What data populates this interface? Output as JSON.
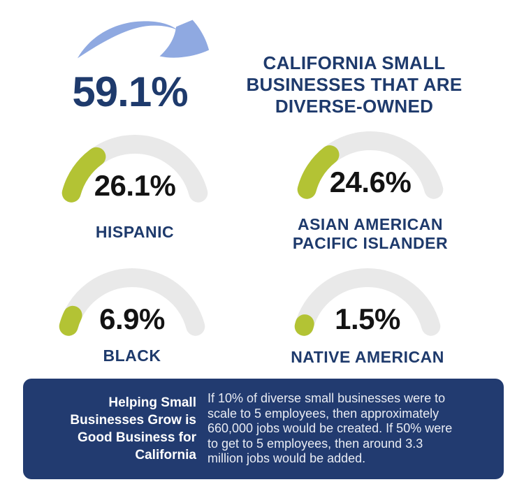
{
  "header": {
    "stat_value": "59.1%",
    "title_lines": [
      "CALIFORNIA SMALL",
      "BUSINESSES THAT ARE",
      "DIVERSE-OWNED"
    ]
  },
  "gauges": [
    {
      "pct": "26.1%",
      "value": 26.1,
      "label_lines": [
        "HISPANIC"
      ]
    },
    {
      "pct": "24.6%",
      "value": 24.6,
      "label_lines": [
        "ASIAN AMERICAN",
        "PACIFIC ISLANDER"
      ]
    },
    {
      "pct": "6.9%",
      "value": 6.9,
      "label_lines": [
        "BLACK"
      ]
    },
    {
      "pct": "1.5%",
      "value": 1.5,
      "label_lines": [
        "NATIVE AMERICAN"
      ]
    }
  ],
  "banner": {
    "heading_lines": [
      "Helping Small",
      "Businesses Grow is",
      "Good Business for",
      "California"
    ],
    "body_lines": [
      "If 10% of diverse small businesses were to",
      "scale to 5 employees, then approximately",
      "660,000 jobs would be created. If 50% were",
      "to get to 5 employees, then around 3.3",
      "million jobs would be added."
    ]
  },
  "colors": {
    "navy_text": "#1E3A6C",
    "banner_background": "#223B70",
    "gauge_fill_green": "#B3C334",
    "gauge_track_gray": "#E9E9E9",
    "arrow_blue": "#8FA9E1",
    "percent_black": "#131313",
    "banner_body_text": "#E9ECF3"
  },
  "chart_data": {
    "type": "gauge",
    "title": "CALIFORNIA SMALL BUSINESSES THAT ARE DIVERSE-OWNED",
    "overall_value": 59.1,
    "categories": [
      "HISPANIC",
      "ASIAN AMERICAN PACIFIC ISLANDER",
      "BLACK",
      "NATIVE AMERICAN"
    ],
    "values": [
      26.1,
      24.6,
      6.9,
      1.5
    ],
    "unit": "%",
    "gauge_range": [
      0,
      100
    ],
    "legend_position": "none",
    "annotation": "If 10% of diverse small businesses were to scale to 5 employees, then approximately 660,000 jobs would be created. If 50% were to get to 5 employees, then around 3.3 million jobs would be added."
  }
}
